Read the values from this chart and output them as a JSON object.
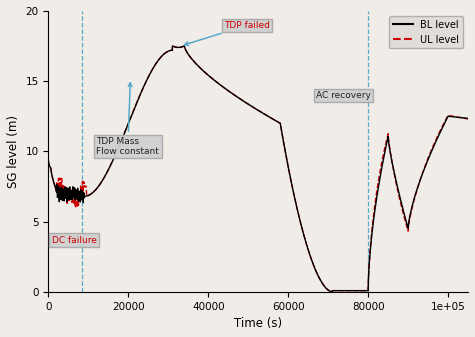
{
  "title": "",
  "xlabel": "Time (s)",
  "ylabel": "SG level (m)",
  "xlim": [
    0,
    105000
  ],
  "ylim": [
    0,
    20
  ],
  "yticks": [
    0,
    5,
    10,
    15,
    20
  ],
  "legend_entries": [
    "BL level",
    "UL level"
  ],
  "dc_failure_x": 8500,
  "ac_recovery_x": 80000,
  "bl_color": "#000000",
  "ul_color": "#cc0000",
  "annotation_box_facecolor": "#d0d0d0",
  "annotation_box_edgecolor": "#aaaaaa",
  "annotation_text_color_red": "#cc0000",
  "annotation_text_color_black": "#222222",
  "dashed_line_color": "#55aacc",
  "arrow_color": "#55aacc",
  "bg_color": "#f0ede8"
}
